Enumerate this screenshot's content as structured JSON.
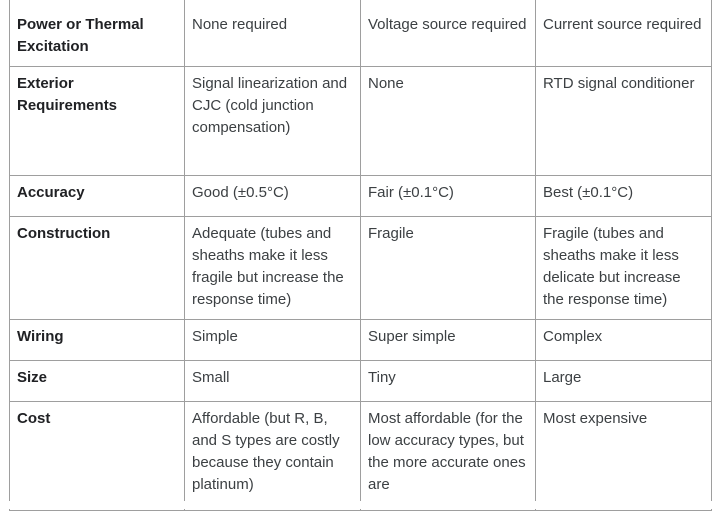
{
  "rows": [
    {
      "label": "Power or Thermal Excitation",
      "thermocouple": "None required",
      "thermistor": "Voltage source required",
      "rtd": "Current source required"
    },
    {
      "label": "Exterior Requirements",
      "thermocouple": "Signal linearization and CJC (cold junction compensation)",
      "thermistor": "None",
      "rtd": "RTD signal conditioner"
    },
    {
      "label": "Accuracy",
      "thermocouple": "Good (±0.5°C)",
      "thermistor": "Fair (±0.1°C)",
      "rtd": "Best (±0.1°C)"
    },
    {
      "label": "Construction",
      "thermocouple": "Adequate (tubes and sheaths make it less fragile but increase the response time)",
      "thermistor": "Fragile",
      "rtd": "Fragile (tubes and sheaths make it less delicate but increase the response time)"
    },
    {
      "label": "Wiring",
      "thermocouple": "Simple",
      "thermistor": "Super simple",
      "rtd": "Complex"
    },
    {
      "label": "Size",
      "thermocouple": "Small",
      "thermistor": "Tiny",
      "rtd": "Large"
    },
    {
      "label": "Cost",
      "thermocouple": "Affordable (but R, B, and S types are costly because they contain platinum)",
      "thermistor": "Most affordable (for the low accuracy types, but the more accurate ones are",
      "rtd": "Most expensive"
    }
  ]
}
